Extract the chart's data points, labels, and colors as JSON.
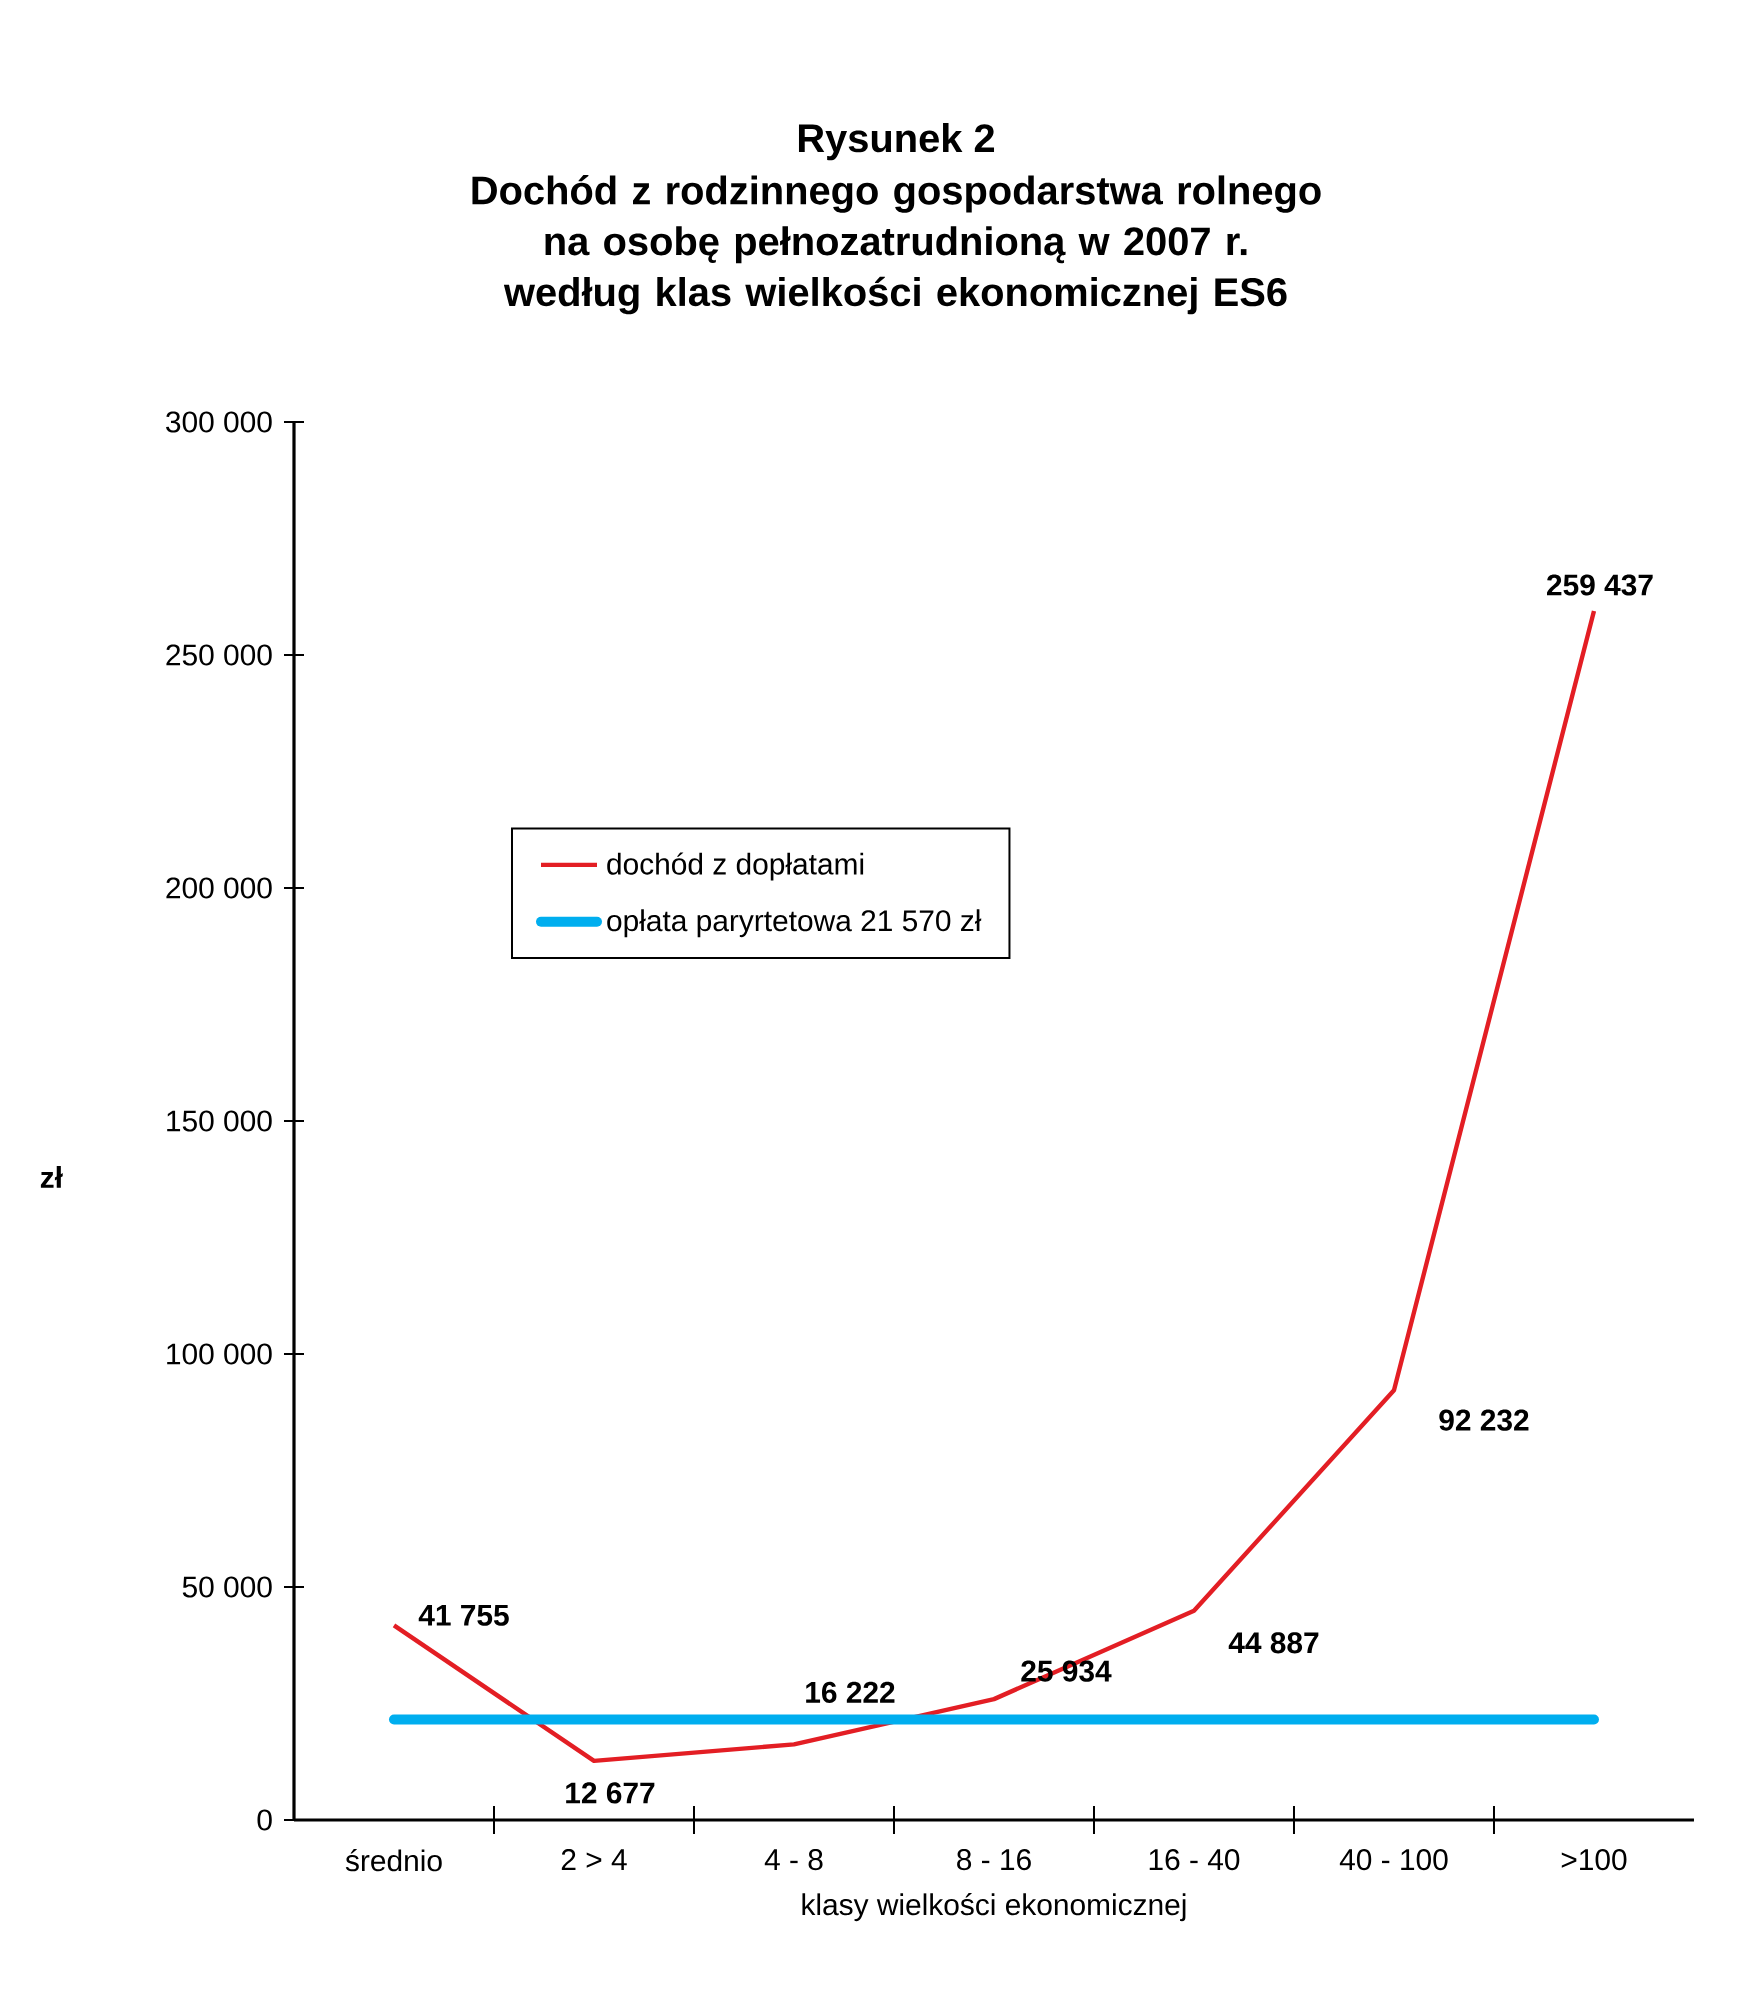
{
  "chart_data": {
    "type": "line",
    "title": "Rysunek 2",
    "subtitle": "Dochód z rodzinnego gospodarstwa rolnego na osobę pełnozatrudnioną w 2007 r. według klas wielkości ekonomicznej ES6",
    "xlabel": "klasy wielkości ekonomicznej",
    "ylabel": "zł",
    "categories": [
      "średnio",
      "2 > 4",
      "4 - 8",
      "8 - 16",
      "16 - 40",
      "40 - 100",
      ">100"
    ],
    "series": [
      {
        "name": "dochód z dopłatami",
        "color": "#e31e24",
        "values": [
          41755,
          12677,
          16222,
          25934,
          44887,
          92232,
          259437
        ],
        "value_labels": [
          "41 755",
          "12 677",
          "16 222",
          "25 934",
          "44 887",
          "92 232",
          "259 437"
        ]
      },
      {
        "name": "opłata paryrtetowa 21 570 zł",
        "color": "#00aeef",
        "values": [
          21570,
          21570,
          21570,
          21570,
          21570,
          21570,
          21570
        ]
      }
    ],
    "ylim": [
      0,
      300000
    ],
    "yticks": [
      {
        "value": 0,
        "label": "0"
      },
      {
        "value": 50000,
        "label": "50 000"
      },
      {
        "value": 100000,
        "label": "100 000"
      },
      {
        "value": 150000,
        "label": "150 000"
      },
      {
        "value": 200000,
        "label": "200  000"
      },
      {
        "value": 250000,
        "label": "250 000"
      },
      {
        "value": 300000,
        "label": "300 000"
      }
    ],
    "legend": "center left",
    "grid": false,
    "marker": "none",
    "line_style": "solid"
  }
}
